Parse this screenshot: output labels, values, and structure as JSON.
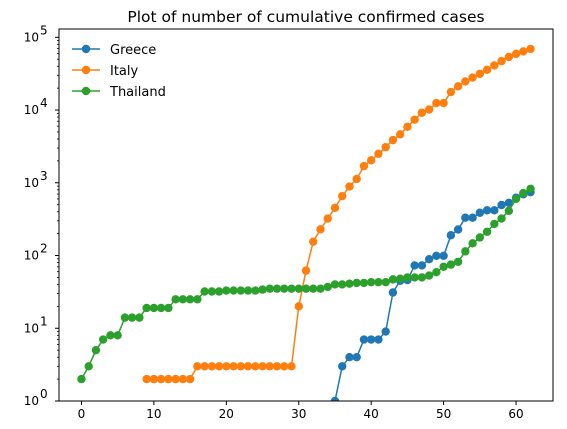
{
  "chart_data": {
    "type": "line",
    "title": "Plot of number of cumulative confirmed cases",
    "xlabel": "",
    "ylabel": "",
    "yscale": "log",
    "xlim": [
      -3.1,
      65.1
    ],
    "ylim": [
      1,
      130000
    ],
    "x_ticks": [
      0,
      10,
      20,
      30,
      40,
      50,
      60
    ],
    "y_ticks": [
      {
        "value": 1,
        "base": "10",
        "exp": "0"
      },
      {
        "value": 10,
        "base": "10",
        "exp": "1"
      },
      {
        "value": 100,
        "base": "10",
        "exp": "2"
      },
      {
        "value": 1000,
        "base": "10",
        "exp": "3"
      },
      {
        "value": 10000,
        "base": "10",
        "exp": "4"
      },
      {
        "value": 100000,
        "base": "10",
        "exp": "5"
      }
    ],
    "grid": false,
    "legend_position": "top-left",
    "series": [
      {
        "name": "Greece",
        "color": "#1f77b4",
        "x": [
          35,
          36,
          37,
          38,
          39,
          40,
          41,
          42,
          43,
          44,
          45,
          46,
          47,
          48,
          49,
          50,
          51,
          52,
          53,
          54,
          55,
          56,
          57,
          58,
          59,
          60,
          61,
          62
        ],
        "values": [
          1,
          3,
          4,
          4,
          7,
          7,
          7,
          9,
          31,
          45,
          46,
          73,
          73,
          89,
          99,
          99,
          190,
          228,
          331,
          331,
          387,
          418,
          418,
          495,
          530,
          624,
          695,
          743
        ]
      },
      {
        "name": "Italy",
        "color": "#ff7f0e",
        "x": [
          9,
          10,
          11,
          12,
          13,
          14,
          15,
          16,
          17,
          18,
          19,
          20,
          21,
          22,
          23,
          24,
          25,
          26,
          27,
          28,
          29,
          30,
          31,
          32,
          33,
          34,
          35,
          36,
          37,
          38,
          39,
          40,
          41,
          42,
          43,
          44,
          45,
          46,
          47,
          48,
          49,
          50,
          51,
          52,
          53,
          54,
          55,
          56,
          57,
          58,
          59,
          60,
          61,
          62
        ],
        "values": [
          2,
          2,
          2,
          2,
          2,
          2,
          2,
          3,
          3,
          3,
          3,
          3,
          3,
          3,
          3,
          3,
          3,
          3,
          3,
          3,
          3,
          20,
          62,
          155,
          229,
          322,
          453,
          655,
          888,
          1128,
          1694,
          2036,
          2502,
          3089,
          3858,
          4636,
          5883,
          7375,
          9172,
          10149,
          12462,
          12462,
          17660,
          21157,
          24747,
          27980,
          31506,
          35713,
          41035,
          47021,
          53578,
          59138,
          63927,
          69176
        ]
      },
      {
        "name": "Thailand",
        "color": "#2ca02c",
        "x": [
          0,
          1,
          2,
          3,
          4,
          5,
          6,
          7,
          8,
          9,
          10,
          11,
          12,
          13,
          14,
          15,
          16,
          17,
          18,
          19,
          20,
          21,
          22,
          23,
          24,
          25,
          26,
          27,
          28,
          29,
          30,
          31,
          32,
          33,
          34,
          35,
          36,
          37,
          38,
          39,
          40,
          41,
          42,
          43,
          44,
          45,
          46,
          47,
          48,
          49,
          50,
          51,
          52,
          53,
          54,
          55,
          56,
          57,
          58,
          59,
          60,
          61,
          62
        ],
        "values": [
          2,
          3,
          5,
          7,
          8,
          8,
          14,
          14,
          14,
          19,
          19,
          19,
          19,
          25,
          25,
          25,
          25,
          32,
          32,
          32,
          33,
          33,
          33,
          33,
          33,
          34,
          35,
          35,
          35,
          35,
          35,
          35,
          35,
          35,
          37,
          40,
          40,
          41,
          42,
          42,
          43,
          43,
          43,
          47,
          48,
          50,
          50,
          50,
          53,
          59,
          70,
          75,
          82,
          114,
          147,
          177,
          212,
          272,
          322,
          411,
          599,
          721,
          827
        ]
      }
    ]
  }
}
